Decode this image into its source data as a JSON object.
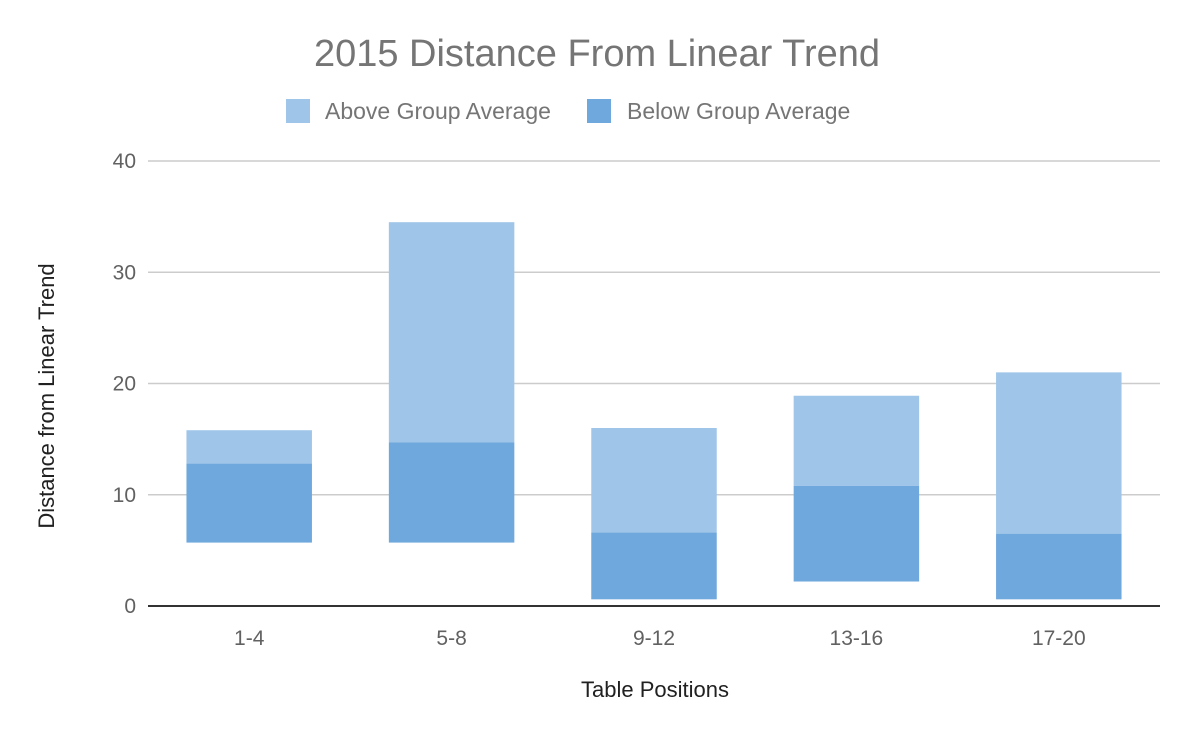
{
  "chart_data": {
    "type": "bar",
    "title": "2015 Distance From Linear Trend",
    "xlabel": "Table Positions",
    "ylabel": "Distance from Linear Trend",
    "categories": [
      "1-4",
      "5-8",
      "9-12",
      "13-16",
      "17-20"
    ],
    "ylim": [
      0,
      40
    ],
    "yticks": [
      0,
      10,
      20,
      30,
      40
    ],
    "grid": true,
    "legend_position": "top",
    "series": [
      {
        "name": "Above Group Average",
        "color": "#9fc5e8",
        "ranges": [
          [
            12.8,
            15.8
          ],
          [
            14.7,
            34.5
          ],
          [
            6.6,
            16.0
          ],
          [
            10.8,
            18.9
          ],
          [
            6.5,
            21.0
          ]
        ]
      },
      {
        "name": "Below Group Average",
        "color": "#6fa8dc",
        "ranges": [
          [
            5.7,
            12.8
          ],
          [
            5.7,
            14.7
          ],
          [
            0.6,
            6.6
          ],
          [
            2.2,
            10.8
          ],
          [
            0.6,
            6.5
          ]
        ]
      }
    ]
  }
}
